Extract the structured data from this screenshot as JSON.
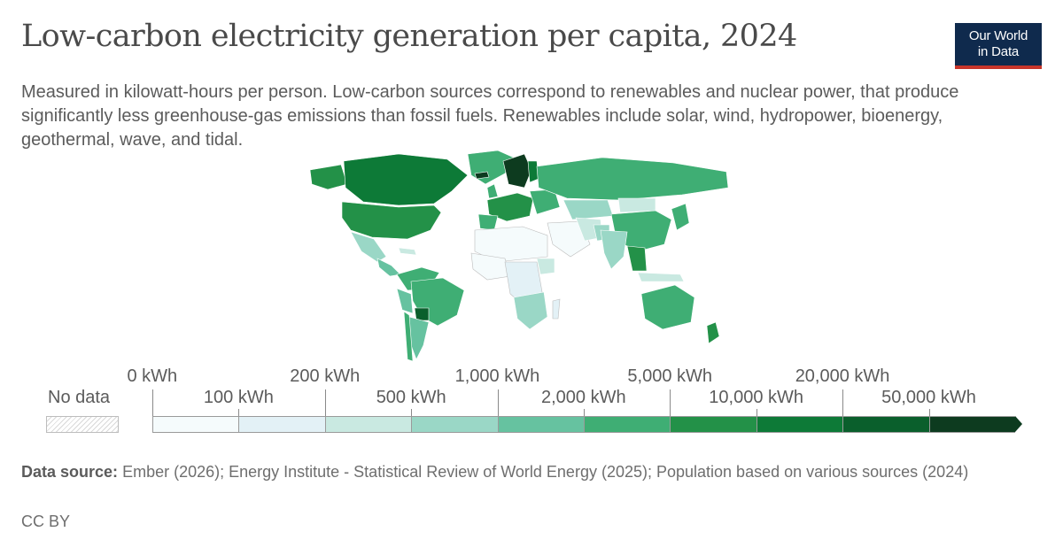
{
  "title": "Low-carbon electricity generation per capita, 2024",
  "logo": {
    "line1": "Our World",
    "line2": "in Data"
  },
  "subtitle": "Measured in kilowatt-hours per person. Low-carbon sources correspond to renewables and nuclear power, that produce significantly less greenhouse-gas emissions than fossil fuels. Renewables include solar, wind, hydropower, bioenergy, geothermal, wave, and tidal.",
  "legend": {
    "no_data": "No data",
    "upper_ticks": [
      "0 kWh",
      "200 kWh",
      "1,000 kWh",
      "5,000 kWh",
      "20,000 kWh"
    ],
    "lower_ticks": [
      "100 kWh",
      "500 kWh",
      "2,000 kWh",
      "10,000 kWh",
      "50,000 kWh"
    ],
    "colors": [
      "#f5fbfc",
      "#e3f1f6",
      "#c9e9e1",
      "#9ad7c6",
      "#66c2a0",
      "#3fae74",
      "#239148",
      "#0d7a37",
      "#0a5f2c",
      "#0d3b1f"
    ]
  },
  "source": {
    "label": "Data source:",
    "text": "Ember (2026); Energy Institute - Statistical Review of World Energy (2025); Population based on various sources (2024)"
  },
  "license": "CC BY"
}
